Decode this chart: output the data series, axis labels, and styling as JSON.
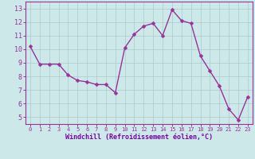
{
  "x": [
    0,
    1,
    2,
    3,
    4,
    5,
    6,
    7,
    8,
    9,
    10,
    11,
    12,
    13,
    14,
    15,
    16,
    17,
    18,
    19,
    20,
    21,
    22,
    23
  ],
  "y": [
    10.2,
    8.9,
    8.9,
    8.9,
    8.1,
    7.7,
    7.6,
    7.4,
    7.4,
    6.8,
    10.1,
    11.1,
    11.7,
    11.9,
    11.0,
    12.9,
    12.1,
    11.9,
    9.5,
    8.4,
    7.3,
    5.6,
    4.8,
    6.5
  ],
  "line_color": "#993399",
  "marker_color": "#993399",
  "bg_color": "#cce8e8",
  "grid_color": "#aacccc",
  "xlabel": "Windchill (Refroidissement éolien,°C)",
  "xlabel_color": "#7700aa",
  "tick_color": "#993399",
  "spine_color": "#993399",
  "ylim": [
    4.5,
    13.5
  ],
  "xlim": [
    -0.5,
    23.5
  ],
  "yticks": [
    5,
    6,
    7,
    8,
    9,
    10,
    11,
    12,
    13
  ],
  "xticks": [
    0,
    1,
    2,
    3,
    4,
    5,
    6,
    7,
    8,
    9,
    10,
    11,
    12,
    13,
    14,
    15,
    16,
    17,
    18,
    19,
    20,
    21,
    22,
    23
  ],
  "figsize": [
    3.2,
    2.0
  ],
  "dpi": 100,
  "linewidth": 1.0,
  "markersize": 2.5
}
